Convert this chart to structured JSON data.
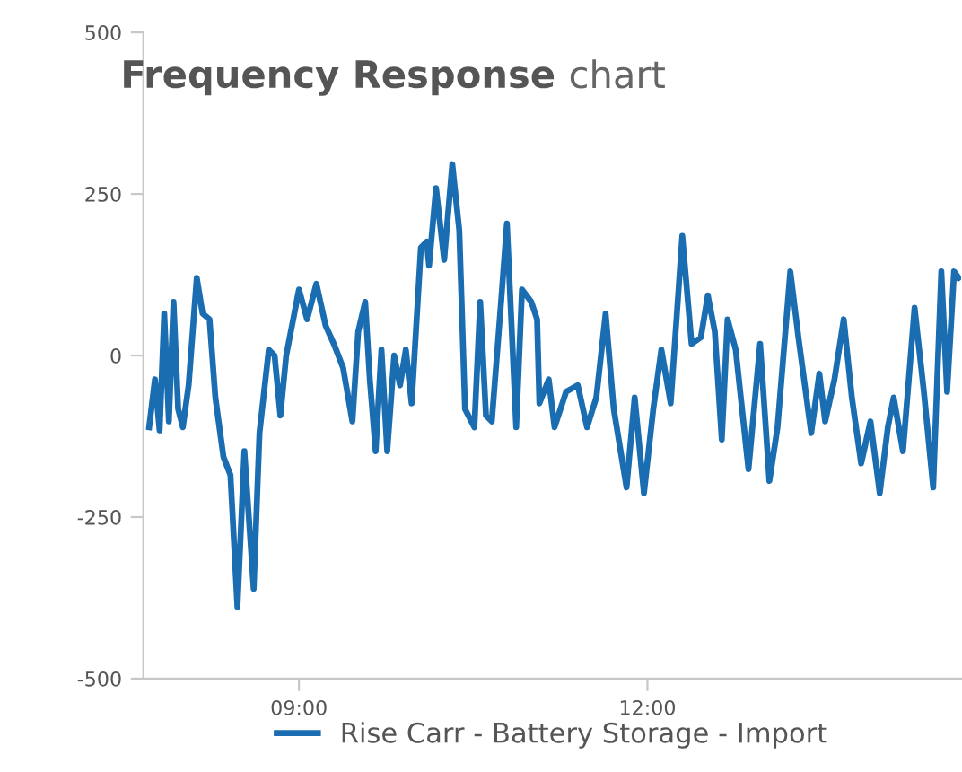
{
  "chart_data": {
    "type": "line",
    "title": "Frequency Response chart",
    "xlim": [
      7.66,
      14.7
    ],
    "xticks": [
      {
        "value": 9,
        "label": "09:00"
      },
      {
        "value": 12,
        "label": "12:00"
      }
    ],
    "ylim": [
      -500,
      500
    ],
    "yticks": [
      -500,
      -250,
      0,
      250,
      500
    ],
    "grid": false,
    "legend": "bottom",
    "marker": "none",
    "line_style": "solid",
    "series": [
      {
        "name": "Rise Carr - Battery Storage - Import",
        "color": "#1b6db2",
        "x": [
          7.71,
          7.76,
          7.8,
          7.84,
          7.88,
          7.92,
          7.96,
          8.0,
          8.05,
          8.12,
          8.17,
          8.23,
          8.28,
          8.35,
          8.41,
          8.47,
          8.53,
          8.61,
          8.66,
          8.74,
          8.79,
          8.84,
          8.89,
          9.0,
          9.07,
          9.15,
          9.23,
          9.3,
          9.38,
          9.46,
          9.51,
          9.57,
          9.61,
          9.66,
          9.71,
          9.76,
          9.82,
          9.87,
          9.92,
          9.97,
          10.05,
          10.1,
          10.12,
          10.18,
          10.25,
          10.32,
          10.38,
          10.43,
          10.51,
          10.56,
          10.61,
          10.66,
          10.74,
          10.79,
          10.87,
          10.92,
          11.0,
          11.05,
          11.07,
          11.15,
          11.2,
          11.3,
          11.4,
          11.48,
          11.56,
          11.64,
          11.71,
          11.82,
          11.89,
          11.97,
          12.05,
          12.12,
          12.2,
          12.3,
          12.38,
          12.46,
          12.52,
          12.58,
          12.64,
          12.69,
          12.76,
          12.87,
          12.97,
          13.05,
          13.12,
          13.23,
          13.3,
          13.41,
          13.48,
          13.53,
          13.61,
          13.69,
          13.76,
          13.84,
          13.92,
          14.0,
          14.07,
          14.12,
          14.2,
          14.3,
          14.38,
          14.46,
          14.53,
          14.58,
          14.64,
          14.68
        ],
        "values": [
          -111,
          -37,
          -116,
          65,
          -102,
          83,
          -83,
          -111,
          -46,
          120,
          65,
          56,
          -65,
          -157,
          -185,
          -389,
          -148,
          -361,
          -120,
          9,
          0,
          -93,
          0,
          102,
          56,
          111,
          46,
          18,
          -19,
          -102,
          37,
          83,
          -37,
          -148,
          9,
          -148,
          0,
          -46,
          9,
          -74,
          167,
          176,
          139,
          259,
          148,
          296,
          194,
          -83,
          -111,
          83,
          -93,
          -102,
          83,
          204,
          -111,
          102,
          83,
          56,
          -74,
          -37,
          -111,
          -56,
          -46,
          -111,
          -65,
          65,
          -83,
          -204,
          -65,
          -213,
          -83,
          9,
          -74,
          185,
          18,
          28,
          93,
          37,
          -130,
          56,
          9,
          -176,
          18,
          -194,
          -111,
          130,
          28,
          -120,
          -28,
          -102,
          -37,
          56,
          -65,
          -167,
          -102,
          -213,
          -111,
          -65,
          -148,
          74,
          -56,
          -204,
          130,
          -56,
          130,
          120
        ]
      }
    ]
  }
}
